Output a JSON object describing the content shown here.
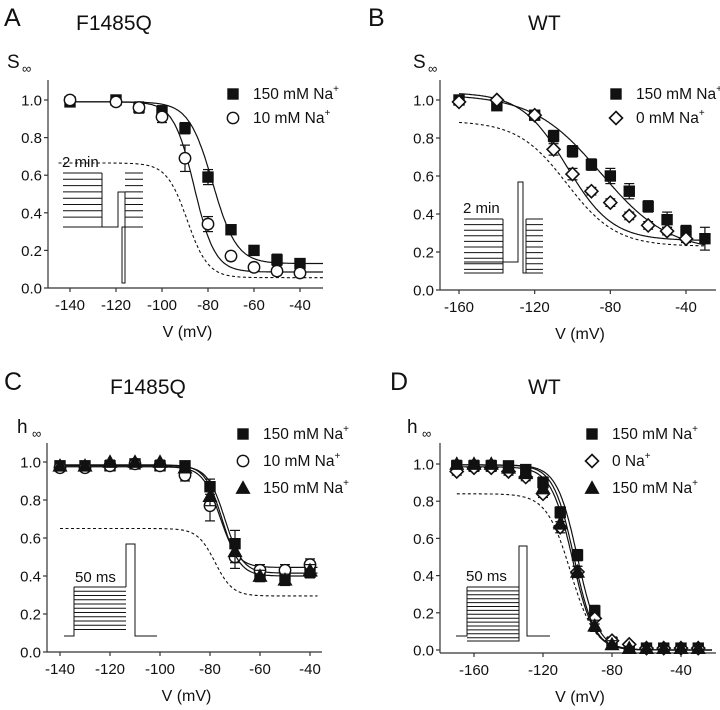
{
  "figure": {
    "panels": [
      "A",
      "B",
      "C",
      "D"
    ]
  },
  "chart_data": [
    {
      "id": "A",
      "type": "scatter",
      "panel_letter": "A",
      "title": "F1485Q",
      "ylabel": "S",
      "ylabel_sub": "∞",
      "xlabel": "V (mV)",
      "xlim": [
        -150,
        -30
      ],
      "ylim": [
        0,
        1.1
      ],
      "xticks": [
        -140,
        -120,
        -100,
        -80,
        -60,
        -40
      ],
      "xtick_labels": [
        "-140",
        "-120",
        "-100",
        "-80",
        "-60",
        "-40"
      ],
      "yticks": [
        0,
        0.2,
        0.4,
        0.6,
        0.8,
        1.0
      ],
      "ytick_labels": [
        "0.0",
        "0.2",
        "0.4",
        "0.6",
        "0.8",
        "1.0"
      ],
      "legend_position": "top-right",
      "inset_label": "2 min",
      "inset_type": "slow",
      "series": [
        {
          "name": "150 mM Na",
          "sup": "+",
          "marker": "square-filled",
          "x": [
            -140,
            -120,
            -110,
            -100,
            -90,
            -80,
            -70,
            -60,
            -50,
            -40
          ],
          "y": [
            0.99,
            1.0,
            0.96,
            0.94,
            0.85,
            0.59,
            0.31,
            0.2,
            0.15,
            0.13
          ],
          "err": [
            0.01,
            0.01,
            0.03,
            0.03,
            0.03,
            0.04,
            0.02,
            0.02,
            0.03,
            0.02
          ],
          "fit": {
            "top": 0.99,
            "bottom": 0.13,
            "vhalf": -78,
            "k": 5.2
          }
        },
        {
          "name": "10 mM Na",
          "sup": "+",
          "marker": "circle-open",
          "x": [
            -140,
            -120,
            -110,
            -100,
            -90,
            -80,
            -70,
            -60,
            -50,
            -40
          ],
          "y": [
            1.0,
            0.99,
            0.96,
            0.91,
            0.69,
            0.34,
            0.17,
            0.11,
            0.09,
            0.08
          ],
          "err": [
            0.01,
            0.01,
            0.02,
            0.03,
            0.07,
            0.04,
            0.02,
            0.02,
            0.02,
            0.02
          ],
          "fit": {
            "top": 0.99,
            "bottom": 0.085,
            "vhalf": -86,
            "k": 4.5
          }
        }
      ],
      "dashed_curve": {
        "top": 0.665,
        "bottom": 0.055,
        "vhalf": -89,
        "k": 4.5
      }
    },
    {
      "id": "B",
      "type": "scatter",
      "panel_letter": "B",
      "title": "WT",
      "ylabel": "S",
      "ylabel_sub": "∞",
      "xlabel": "V (mV)",
      "xlim": [
        -170,
        -25
      ],
      "ylim": [
        0,
        1.1
      ],
      "xticks": [
        -160,
        -120,
        -80,
        -40
      ],
      "xtick_labels": [
        "-160",
        "-120",
        "-80",
        "-40"
      ],
      "yticks": [
        0,
        0.2,
        0.4,
        0.6,
        0.8,
        1.0
      ],
      "ytick_labels": [
        "0.0",
        "0.2",
        "0.4",
        "0.6",
        "0.8",
        "1.0"
      ],
      "legend_position": "top-right",
      "inset_label": "2 min",
      "inset_type": "slow-b",
      "series": [
        {
          "name": "150 mM Na",
          "sup": "+",
          "marker": "square-filled",
          "x": [
            -160,
            -140,
            -120,
            -110,
            -100,
            -90,
            -80,
            -70,
            -60,
            -50,
            -40,
            -30
          ],
          "y": [
            1.0,
            0.97,
            0.92,
            0.81,
            0.73,
            0.66,
            0.6,
            0.52,
            0.44,
            0.37,
            0.31,
            0.27
          ],
          "err": [
            0.02,
            0.02,
            0.02,
            0.03,
            0.03,
            0.03,
            0.04,
            0.04,
            0.03,
            0.04,
            0.03,
            0.06
          ],
          "fit": {
            "top": 1.03,
            "bottom": 0.2,
            "vhalf": -85,
            "k": 18
          }
        },
        {
          "name": "0 mM Na",
          "sup": "+",
          "marker": "diamond-open",
          "x": [
            -160,
            -140,
            -120,
            -110,
            -100,
            -90,
            -80,
            -70,
            -60,
            -50,
            -40
          ],
          "y": [
            0.99,
            1.0,
            0.92,
            0.74,
            0.61,
            0.52,
            0.46,
            0.39,
            0.34,
            0.31,
            0.27
          ],
          "err": [
            0.01,
            0.01,
            0.02,
            0.03,
            0.03,
            0.02,
            0.02,
            0.02,
            0.02,
            0.02,
            0.02
          ],
          "fit": {
            "top": 1.04,
            "bottom": 0.26,
            "vhalf": -103,
            "k": 12
          }
        }
      ],
      "dashed_curve": {
        "top": 0.89,
        "bottom": 0.23,
        "vhalf": -103,
        "k": 13
      }
    },
    {
      "id": "C",
      "type": "scatter",
      "panel_letter": "C",
      "title": "F1485Q",
      "ylabel": "h",
      "ylabel_sub": "∞",
      "xlabel": "V (mV)",
      "xlim": [
        -145,
        -35
      ],
      "ylim": [
        0,
        1.1
      ],
      "xticks": [
        -140,
        -120,
        -100,
        -80,
        -60,
        -40
      ],
      "xtick_labels": [
        "-140",
        "-120",
        "-100",
        "-80",
        "-60",
        "-40"
      ],
      "yticks": [
        0,
        0.2,
        0.4,
        0.6,
        0.8,
        1.0
      ],
      "ytick_labels": [
        "0.0",
        "0.2",
        "0.4",
        "0.6",
        "0.8",
        "1.0"
      ],
      "legend_position": "top-right",
      "inset_label": "50 ms",
      "inset_type": "fast",
      "series": [
        {
          "name": "150 mM Na",
          "sup": "+",
          "marker": "square-filled",
          "x": [
            -140,
            -130,
            -120,
            -110,
            -100,
            -90,
            -80,
            -70,
            -60,
            -50,
            -40
          ],
          "y": [
            0.98,
            0.98,
            0.98,
            0.99,
            0.98,
            0.98,
            0.87,
            0.57,
            0.41,
            0.4,
            0.42
          ],
          "err": [
            0.02,
            0.02,
            0.02,
            0.01,
            0.02,
            0.02,
            0.04,
            0.07,
            0.03,
            0.03,
            0.03
          ],
          "fit": {
            "top": 0.98,
            "bottom": 0.415,
            "vhalf": -74,
            "k": 3.5
          }
        },
        {
          "name": "10 mM Na",
          "sup": "+",
          "marker": "circle-open",
          "x": [
            -140,
            -130,
            -120,
            -110,
            -100,
            -90,
            -80,
            -70,
            -60,
            -50,
            -40
          ],
          "y": [
            0.97,
            0.97,
            0.98,
            0.99,
            0.98,
            0.93,
            0.77,
            0.5,
            0.43,
            0.43,
            0.46
          ],
          "err": [
            0.02,
            0.02,
            0.02,
            0.01,
            0.02,
            0.03,
            0.08,
            0.06,
            0.03,
            0.03,
            0.03
          ],
          "fit": {
            "top": 0.975,
            "bottom": 0.445,
            "vhalf": -76,
            "k": 3.5
          }
        },
        {
          "name": "150 mM Na",
          "sup": "+",
          "marker": "triangle-filled",
          "x": [
            -140,
            -130,
            -120,
            -110,
            -100,
            -90,
            -80,
            -70,
            -60,
            -50,
            -40
          ],
          "y": [
            0.98,
            0.98,
            1.0,
            1.0,
            1.0,
            0.97,
            0.82,
            0.53,
            0.4,
            0.38,
            0.43
          ],
          "err": [
            0.02,
            0.02,
            0.01,
            0.01,
            0.01,
            0.02,
            0.05,
            0.06,
            0.03,
            0.03,
            0.03
          ],
          "fit": {
            "top": 0.985,
            "bottom": 0.4,
            "vhalf": -75,
            "k": 3.5
          }
        }
      ],
      "dashed_curve": {
        "top": 0.65,
        "bottom": 0.295,
        "vhalf": -78,
        "k": 3.5
      }
    },
    {
      "id": "D",
      "type": "scatter",
      "panel_letter": "D",
      "title": "WT",
      "ylabel": "h",
      "ylabel_sub": "∞",
      "xlabel": "V (mV)",
      "xlim": [
        -180,
        -20
      ],
      "ylim": [
        0,
        1.1
      ],
      "xticks": [
        -160,
        -120,
        -80,
        -40
      ],
      "xtick_labels": [
        "-160",
        "-120",
        "-80",
        "-40"
      ],
      "yticks": [
        0,
        0.2,
        0.4,
        0.6,
        0.8,
        1.0
      ],
      "ytick_labels": [
        "0.0",
        "0.2",
        "0.4",
        "0.6",
        "0.8",
        "1.0"
      ],
      "legend_position": "top-right",
      "inset_label": "50 ms",
      "inset_type": "fast-d",
      "series": [
        {
          "name": "150 mM Na",
          "sup": "+",
          "marker": "square-filled",
          "x": [
            -170,
            -160,
            -150,
            -140,
            -130,
            -120,
            -110,
            -100,
            -90,
            -80,
            -70,
            -60,
            -50,
            -40,
            -30
          ],
          "y": [
            0.99,
            0.99,
            0.99,
            0.99,
            0.97,
            0.9,
            0.74,
            0.51,
            0.21,
            0.04,
            0.01,
            0.01,
            0.01,
            0.01,
            0.01
          ],
          "err": [
            0.02,
            0.02,
            0.02,
            0.02,
            0.02,
            0.03,
            0.03,
            0.03,
            0.03,
            0.02,
            0.01,
            0.01,
            0.01,
            0.01,
            0.01
          ],
          "fit": {
            "top": 0.995,
            "bottom": 0.0,
            "vhalf": -100,
            "k": 6.0
          }
        },
        {
          "name": "0 Na",
          "sup": "+",
          "marker": "diamond-open",
          "x": [
            -170,
            -160,
            -150,
            -140,
            -130,
            -120,
            -110,
            -100,
            -90,
            -80,
            -70,
            -60,
            -50,
            -40,
            -30
          ],
          "y": [
            0.96,
            0.98,
            0.98,
            0.96,
            0.93,
            0.84,
            0.66,
            0.42,
            0.17,
            0.05,
            0.03,
            0.01,
            0.01,
            0.01,
            0.01
          ],
          "err": [
            0.02,
            0.02,
            0.02,
            0.02,
            0.02,
            0.02,
            0.03,
            0.03,
            0.03,
            0.02,
            0.01,
            0.01,
            0.01,
            0.01,
            0.01
          ],
          "fit": {
            "top": 0.985,
            "bottom": 0.0,
            "vhalf": -103,
            "k": 6.2
          }
        },
        {
          "name": "150 mM Na",
          "sup": "+",
          "marker": "triangle-filled",
          "x": [
            -170,
            -160,
            -150,
            -140,
            -130,
            -120,
            -110,
            -100,
            -90,
            -80,
            -70,
            -60,
            -50,
            -40,
            -30
          ],
          "y": [
            1.0,
            1.0,
            1.0,
            0.98,
            0.95,
            0.87,
            0.68,
            0.42,
            0.13,
            0.03,
            0.01,
            0.01,
            0.01,
            0.01,
            0.01
          ],
          "err": [
            0.02,
            0.02,
            0.02,
            0.02,
            0.02,
            0.03,
            0.03,
            0.03,
            0.03,
            0.02,
            0.01,
            0.01,
            0.01,
            0.01,
            0.01
          ],
          "fit": {
            "top": 0.995,
            "bottom": 0.0,
            "vhalf": -102,
            "k": 6.0
          }
        }
      ],
      "dashed_curve": {
        "top": 0.84,
        "bottom": 0.0,
        "vhalf": -104,
        "k": 7.0
      }
    }
  ]
}
